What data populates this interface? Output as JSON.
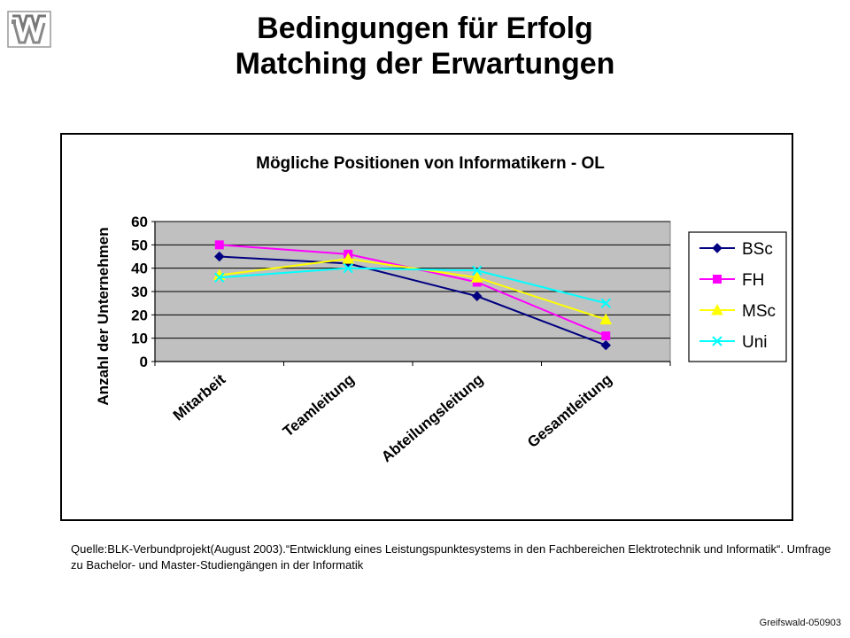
{
  "slide": {
    "title_line1": "Bedingungen für Erfolg",
    "title_line2": "Matching der Erwartungen",
    "source_text": "Quelle:BLK-Verbundprojekt(August 2003).“Entwicklung eines Leistungspunktesystems in den Fachbereichen Elektrotechnik und Informatik“. Umfrage zu Bachelor- und Master-Studiengängen in der Informatik",
    "footer": "Greifswald-050903"
  },
  "chart_data": {
    "type": "line",
    "title": "Mögliche Positionen von Informatikern  - OL",
    "xlabel": "",
    "ylabel": "Anzahl der Unternehmen",
    "ylim": [
      0,
      60
    ],
    "yticks": [
      "0",
      "10",
      "20",
      "30",
      "40",
      "50",
      "60"
    ],
    "categories": [
      "Mitarbeit",
      "Teamleitung",
      "Abteilungsleitung",
      "Gesamtleitung"
    ],
    "grid": true,
    "legend_position": "right",
    "plot_background": "#c0c0c0",
    "series": [
      {
        "name": "BSc",
        "values": [
          45,
          42,
          28,
          7
        ],
        "color": "#000080",
        "marker": "diamond"
      },
      {
        "name": "FH",
        "values": [
          50,
          46,
          34,
          11
        ],
        "color": "#ff00ff",
        "marker": "square"
      },
      {
        "name": "MSc",
        "values": [
          37,
          44,
          36,
          18
        ],
        "color": "#ffff00",
        "marker": "triangle"
      },
      {
        "name": "Uni",
        "values": [
          36,
          40,
          39,
          25
        ],
        "color": "#00ffff",
        "marker": "x"
      }
    ]
  }
}
